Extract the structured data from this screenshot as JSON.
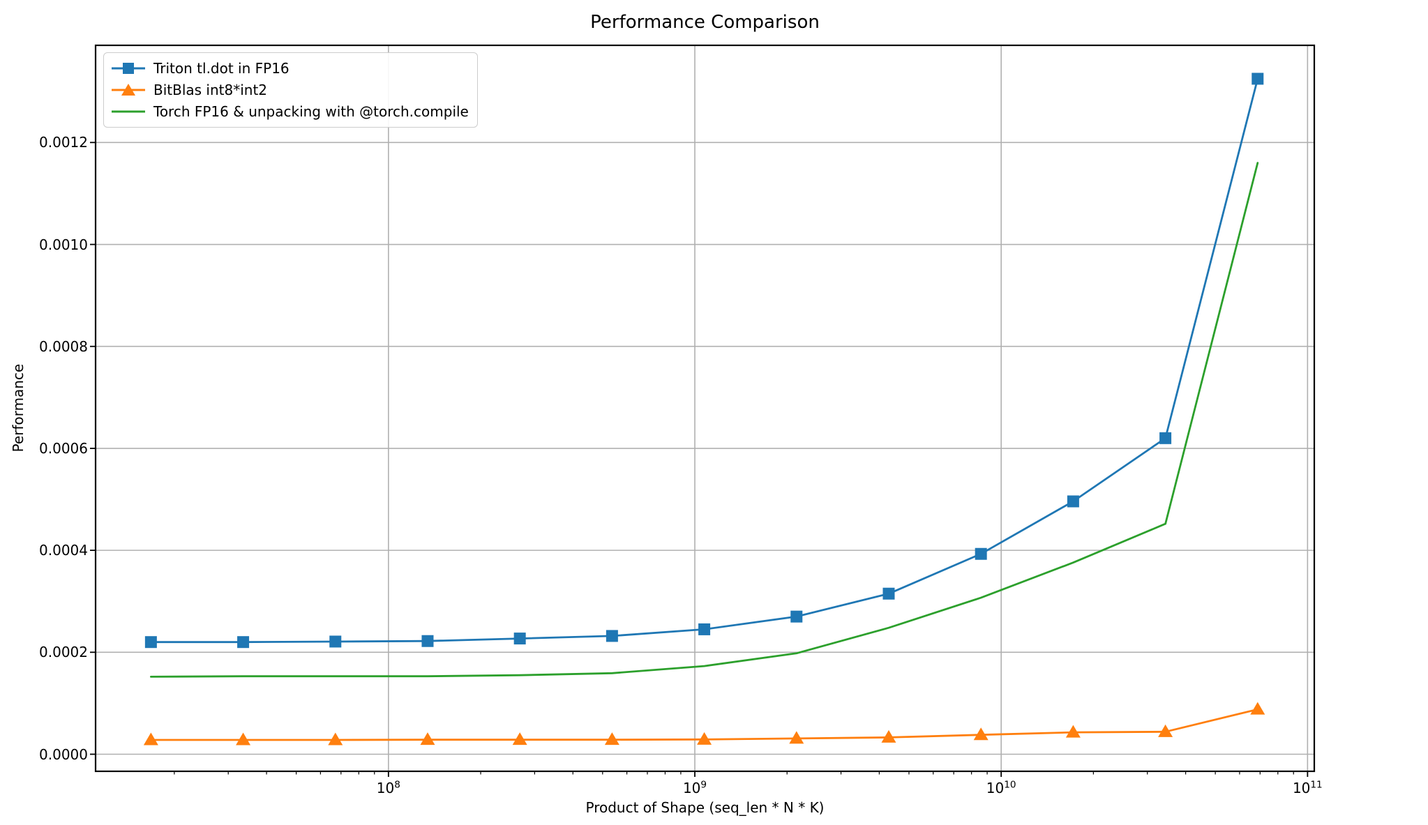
{
  "chart_data": {
    "type": "line",
    "title": "Performance Comparison",
    "xlabel": "Product of Shape (seq_len * N * K)",
    "ylabel": "Performance",
    "x_scale": "log",
    "grid": true,
    "legend_position": "upper left",
    "x": [
      16777216,
      33554432,
      67108864,
      134217728,
      268435456,
      536870912,
      1073741824,
      2147483648,
      4294967296,
      8589934592,
      17179869184,
      34359738368,
      68719476736
    ],
    "series": [
      {
        "name": "Triton tl.dot in FP16",
        "color": "#1f77b4",
        "marker": "square",
        "values": [
          0.00022,
          0.00022,
          0.000221,
          0.000222,
          0.000227,
          0.000232,
          0.000245,
          0.00027,
          0.000315,
          0.000393,
          0.000496,
          0.00062,
          0.001325
        ]
      },
      {
        "name": "BitBlas int8*int2",
        "color": "#ff7f0e",
        "marker": "triangle-up",
        "values": [
          2.8e-05,
          2.8e-05,
          2.8e-05,
          2.85e-05,
          2.85e-05,
          2.85e-05,
          2.9e-05,
          3.1e-05,
          3.3e-05,
          3.8e-05,
          4.3e-05,
          4.4e-05,
          8.8e-05
        ]
      },
      {
        "name": "Torch FP16 & unpacking with @torch.compile",
        "color": "#2ca02c",
        "marker": "none",
        "values": [
          0.000152,
          0.000153,
          0.000153,
          0.000153,
          0.000155,
          0.000159,
          0.000173,
          0.000198,
          0.000248,
          0.000307,
          0.000376,
          0.000452,
          0.00116
        ]
      }
    ],
    "x_axis": {
      "tick_exponents": [
        8,
        9,
        10,
        11
      ],
      "lim_log10": [
        7.044,
        11.022
      ],
      "minor_ticks": true
    },
    "y_axis": {
      "ticks": [
        0.0,
        0.0002,
        0.0004,
        0.0006,
        0.0008,
        0.001,
        0.0012
      ],
      "tick_labels": [
        "0.0000",
        "0.0002",
        "0.0004",
        "0.0006",
        "0.0008",
        "0.0010",
        "0.0012"
      ],
      "lim": [
        -3.35e-05,
        0.0013906
      ]
    }
  },
  "colors": {
    "grid": "#b0b0b0",
    "spine": "#000000",
    "background": "#ffffff",
    "legend_border": "#cccccc"
  }
}
